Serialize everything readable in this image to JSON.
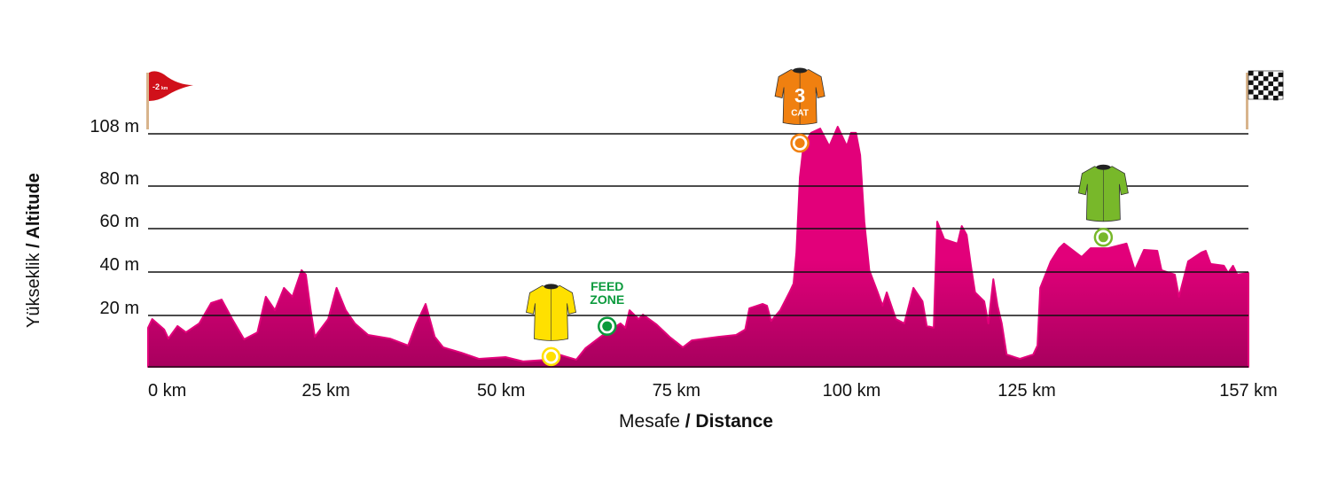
{
  "chart_data": {
    "type": "area",
    "title": "",
    "xlabel_light": "Mesafe",
    "xlabel_bold": "/ Distance",
    "ylabel_light": "Yükseklik",
    "ylabel_bold": "/ Altitude",
    "x_ticks": [
      {
        "value": 0,
        "label": "0 km"
      },
      {
        "value": 25,
        "label": "25 km"
      },
      {
        "value": 50,
        "label": "50 km"
      },
      {
        "value": 75,
        "label": "75 km"
      },
      {
        "value": 100,
        "label": "100 km"
      },
      {
        "value": 125,
        "label": "125 km"
      },
      {
        "value": 157,
        "label": "157 km"
      }
    ],
    "y_ticks": [
      {
        "value": 20,
        "label": "20 m"
      },
      {
        "value": 40,
        "label": "40 m"
      },
      {
        "value": 60,
        "label": "60 m"
      },
      {
        "value": 80,
        "label": "80 m"
      },
      {
        "value": 108,
        "label": "108 m"
      }
    ],
    "xlim": [
      0,
      157
    ],
    "grid": true,
    "fill_color": "#e2007a",
    "fill_color_dark": "#a8005e",
    "distance_km": [
      0,
      0.6,
      2.3,
      2.9,
      4.2,
      5.4,
      7.3,
      9.0,
      10.5,
      12.0,
      13.7,
      15.6,
      16.8,
      18.1,
      19.4,
      20.6,
      21.9,
      22.5,
      23.2,
      23.8,
      25.7,
      26.9,
      28.2,
      29.5,
      31.4,
      34.5,
      37.1,
      38.3,
      39.6,
      40.9,
      42.1,
      44.7,
      47.2,
      51.0,
      53.5,
      57.3,
      58.6,
      61.1,
      62.4,
      64.9,
      67.4,
      68.1,
      68.7,
      70.0,
      70.6,
      72.5,
      74.4,
      76.3,
      77.6,
      81.4,
      83.9,
      85.2,
      85.8,
      87.7,
      88.3,
      88.9,
      90.2,
      91.5,
      92.1,
      92.5,
      93.0,
      93.5,
      94.6,
      95.9,
      97.2,
      98.4,
      99.7,
      100.3,
      101.0,
      101.6,
      102.2,
      102.9,
      104.1,
      104.8,
      105.4,
      106.7,
      107.9,
      109.2,
      110.5,
      111.1,
      112.1,
      112.6,
      113.6,
      115.5,
      116.1,
      116.8,
      117.4,
      118.0,
      119.3,
      119.9,
      120.6,
      121.2,
      121.8,
      122.5,
      124.4,
      126.3,
      126.9,
      127.3,
      128.8,
      130.0,
      130.7,
      133.2,
      134.5,
      137.0,
      139.6,
      140.8,
      142.1,
      144.0,
      144.6,
      146.5,
      147.1,
      148.4,
      150.3,
      150.9,
      151.6,
      153.5,
      154.1,
      154.8,
      155.4,
      157
    ],
    "altitude_m": [
      15.2,
      18.6,
      14.5,
      11,
      15.9,
      13.4,
      16.9,
      25.7,
      27.3,
      18.6,
      10.7,
      13.4,
      28.6,
      22.4,
      32.7,
      28.6,
      40.8,
      38.8,
      22.4,
      11.7,
      18.6,
      32.7,
      22.4,
      16.9,
      12.4,
      11,
      8.3,
      16.9,
      25.3,
      11.7,
      7.6,
      5.5,
      3.1,
      3.8,
      2.1,
      2.8,
      4.8,
      2.8,
      7.2,
      12.4,
      16.9,
      15.2,
      22.4,
      18.6,
      20.4,
      16.6,
      11.7,
      7.6,
      10.3,
      11.7,
      12.4,
      14.5,
      23.3,
      25.3,
      24.5,
      17.9,
      22.4,
      30.6,
      34.7,
      49,
      84.7,
      101.3,
      108.5,
      110.8,
      101.3,
      111.8,
      101.3,
      108.5,
      108.5,
      96.6,
      63.3,
      40.8,
      30.6,
      24.5,
      30.6,
      18.6,
      16.9,
      32.7,
      26.5,
      15.9,
      15.2,
      63.3,
      55.1,
      53.1,
      61.2,
      57.1,
      42.9,
      30.6,
      26.5,
      16.9,
      36.7,
      24.5,
      16.9,
      4.8,
      3.1,
      4.8,
      8.3,
      32.7,
      44.9,
      51,
      53.1,
      46.9,
      51,
      51,
      53.1,
      40.8,
      50.2,
      49.8,
      40.8,
      38.8,
      28.6,
      44.9,
      49,
      49.8,
      43.7,
      42.9,
      39.6,
      42.9,
      38.8,
      39.6
    ],
    "start_flag": {
      "label": "-2",
      "unit": "km",
      "color": "#d0101a"
    },
    "markers": [
      {
        "name": "yellow-jersey",
        "km": 57.5,
        "alt": 4,
        "color": "#ffe000",
        "kind": "jersey"
      },
      {
        "name": "feed-zone",
        "km": 65.5,
        "alt": 15.8,
        "color": "#0a9a3c",
        "kind": "feed",
        "label1": "FEED",
        "label2": "ZONE"
      },
      {
        "name": "cat3-climb",
        "km": 93.0,
        "alt": 103,
        "color": "#f08010",
        "kind": "climb",
        "number": "3",
        "cat": "CAT"
      },
      {
        "name": "green-jersey",
        "km": 136.3,
        "alt": 56,
        "color": "#78b82a",
        "kind": "jersey"
      }
    ]
  }
}
